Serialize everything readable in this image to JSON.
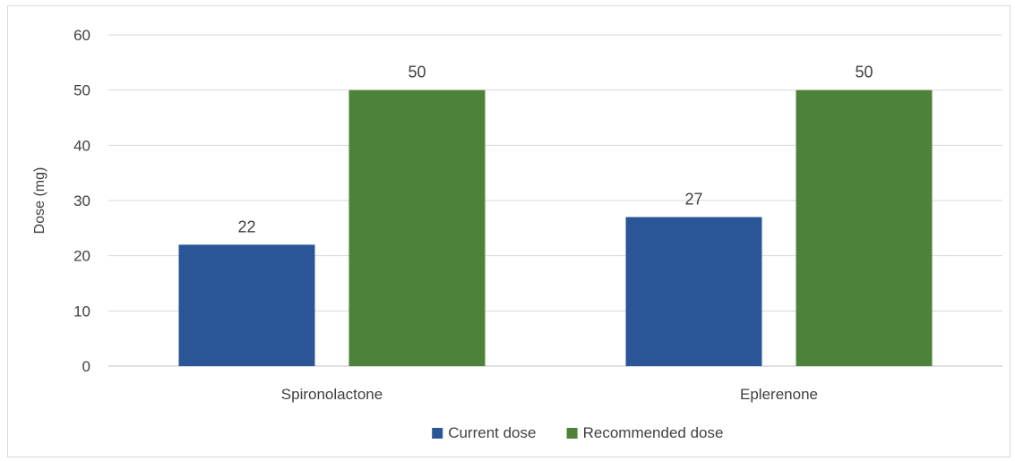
{
  "chart_data": {
    "type": "bar",
    "categories": [
      "Spironolactone",
      "Eplerenone"
    ],
    "series": [
      {
        "name": "Current dose",
        "values": [
          22,
          27
        ],
        "color": "#2a5597"
      },
      {
        "name": "Recommended dose",
        "values": [
          50,
          50
        ],
        "color": "#4f8239"
      }
    ],
    "ylabel": "Dose (mg)",
    "xlabel": "",
    "ylim": [
      0,
      60
    ],
    "yticks": [
      0,
      10,
      20,
      30,
      40,
      50,
      60
    ],
    "grid": true,
    "legend": "bottom",
    "data_labels": true
  }
}
